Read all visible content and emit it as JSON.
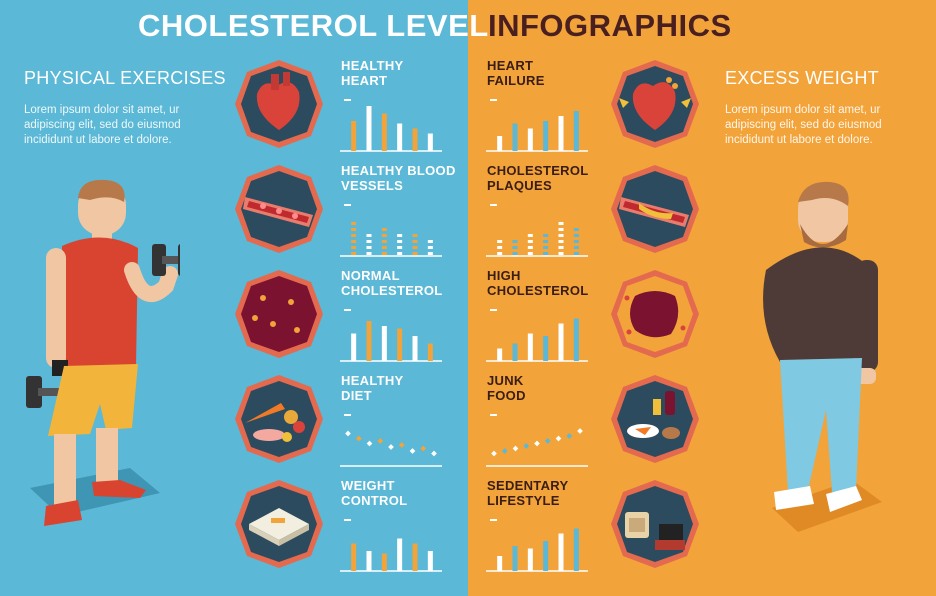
{
  "header": {
    "title_left": "CHOLESTEROL LEVEL",
    "title_right": "INFOGRAPHICS"
  },
  "left_panel": {
    "heading": "PHYSICAL EXERCISES",
    "body": "Lorem ipsum dolor sit amet, ur adipiscing elit, sed do eiusmod incididunt ut labore et dolore."
  },
  "right_panel": {
    "heading": "EXCESS WEIGHT",
    "body": "Lorem ipsum dolor sit amet, ur adipiscing elit, sed do eiusmod incididunt ut labore et dolore."
  },
  "left_items": [
    {
      "line1": "HEALTHY",
      "line2": "HEART",
      "icon": "heart-icon"
    },
    {
      "line1": "HEALTHY BLOOD",
      "line2": "VESSELS",
      "icon": "blood-vessel-icon"
    },
    {
      "line1": "NORMAL",
      "line2": "CHOLESTEROL",
      "icon": "blood-cell-icon"
    },
    {
      "line1": "HEALTHY",
      "line2": "DIET",
      "icon": "food-icon"
    },
    {
      "line1": "WEIGHT",
      "line2": "CONTROL",
      "icon": "scale-icon"
    }
  ],
  "right_items": [
    {
      "line1": "HEART",
      "line2": "FAILURE",
      "icon": "damaged-heart-icon"
    },
    {
      "line1": "CHOLESTEROL",
      "line2": "PLAQUES",
      "icon": "clogged-artery-icon"
    },
    {
      "line1": "HIGH",
      "line2": "CHOLESTEROL",
      "icon": "fatty-blood-icon"
    },
    {
      "line1": "JUNK",
      "line2": "FOOD",
      "icon": "junk-food-icon"
    },
    {
      "line1": "SEDENTARY",
      "line2": "LIFESTYLE",
      "icon": "couch-tv-icon"
    }
  ],
  "chart_data": [
    {
      "type": "bar",
      "style": "solid",
      "values": [
        0.6,
        0.9,
        0.75,
        0.55,
        0.45,
        0.35
      ],
      "colors": [
        "#f2a33a",
        "#ffffff"
      ]
    },
    {
      "type": "bar",
      "style": "dotted",
      "values": [
        0.7,
        0.45,
        0.6,
        0.5,
        0.55,
        0.35
      ],
      "colors": [
        "#f2a33a",
        "#ffffff"
      ]
    },
    {
      "type": "bar",
      "style": "solid",
      "values": [
        0.55,
        0.8,
        0.7,
        0.65,
        0.5,
        0.35
      ],
      "colors": [
        "#ffffff",
        "#f2a33a"
      ]
    },
    {
      "type": "scatter",
      "values": [
        0.65,
        0.55,
        0.45,
        0.5,
        0.38,
        0.42,
        0.3,
        0.35,
        0.25
      ],
      "colors": [
        "#ffffff",
        "#f2a33a"
      ]
    },
    {
      "type": "bar",
      "style": "solid",
      "values": [
        0.55,
        0.4,
        0.35,
        0.65,
        0.55,
        0.4
      ],
      "colors": [
        "#f2a33a",
        "#ffffff"
      ]
    },
    {
      "type": "bar",
      "style": "solid",
      "values": [
        0.3,
        0.55,
        0.45,
        0.6,
        0.7,
        0.8
      ],
      "colors": [
        "#ffffff",
        "#5bb8d6"
      ]
    },
    {
      "type": "bar",
      "style": "dotted",
      "values": [
        0.4,
        0.35,
        0.45,
        0.5,
        0.7,
        0.6
      ],
      "colors": [
        "#ffffff",
        "#5bb8d6"
      ]
    },
    {
      "type": "bar",
      "style": "solid",
      "values": [
        0.25,
        0.35,
        0.55,
        0.5,
        0.75,
        0.85
      ],
      "colors": [
        "#ffffff",
        "#5bb8d6"
      ]
    },
    {
      "type": "scatter",
      "values": [
        0.25,
        0.3,
        0.35,
        0.4,
        0.45,
        0.5,
        0.55,
        0.6,
        0.7
      ],
      "colors": [
        "#ffffff",
        "#5bb8d6"
      ]
    },
    {
      "type": "bar",
      "style": "solid",
      "values": [
        0.3,
        0.5,
        0.45,
        0.6,
        0.75,
        0.85
      ],
      "colors": [
        "#ffffff",
        "#5bb8d6"
      ]
    }
  ],
  "colors": {
    "left_bg": "#5bb8d6",
    "right_bg": "#f2a33a",
    "circle_fill": "#2c4b5e",
    "circle_ring": "#e46a4f"
  }
}
